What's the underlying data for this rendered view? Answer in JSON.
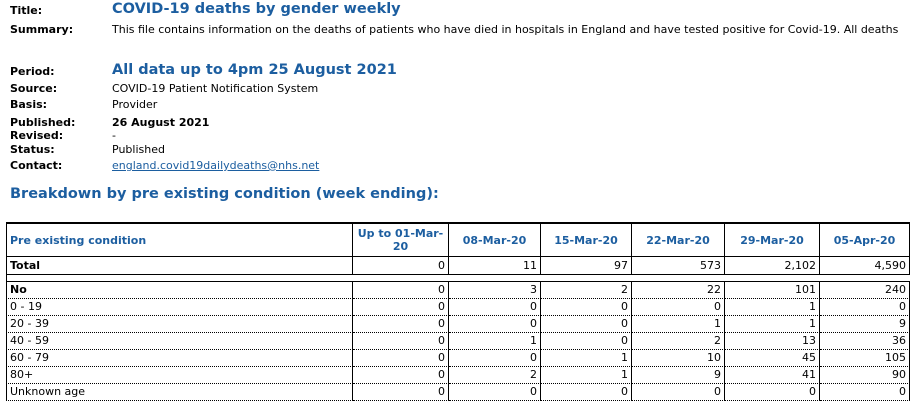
{
  "meta": {
    "title_label": "Title:",
    "title": "COVID-19 deaths by gender weekly",
    "summary_label": "Summary:",
    "summary": "This file contains information on the deaths of patients who have died in hospitals in England and have tested positive for Covid-19. All deaths",
    "period_label": "Period:",
    "period": "All data up to 4pm 25 August 2021",
    "source_label": "Source:",
    "source": "COVID-19 Patient Notification System",
    "basis_label": "Basis:",
    "basis": "Provider",
    "published_label": "Published:",
    "published": "26 August 2021",
    "revised_label": "Revised:",
    "revised": "-",
    "status_label": "Status:",
    "status": "Published",
    "contact_label": "Contact:",
    "contact": "england.covid19dailydeaths@nhs.net"
  },
  "section_title": "Breakdown by pre existing condition (week ending):",
  "table": {
    "columns": [
      "Pre existing condition",
      "Up to 01-Mar-20",
      "08-Mar-20",
      "15-Mar-20",
      "22-Mar-20",
      "29-Mar-20",
      "05-Apr-20"
    ],
    "total": [
      "Total",
      "0",
      "11",
      "97",
      "573",
      "2,102",
      "4,590"
    ],
    "group": [
      "No",
      "0",
      "3",
      "2",
      "22",
      "101",
      "240"
    ],
    "rows": [
      [
        "0 - 19",
        "0",
        "0",
        "0",
        "0",
        "1",
        "0"
      ],
      [
        "20 - 39",
        "0",
        "0",
        "0",
        "1",
        "1",
        "9"
      ],
      [
        "40 - 59",
        "0",
        "1",
        "0",
        "2",
        "13",
        "36"
      ],
      [
        "60 - 79",
        "0",
        "0",
        "1",
        "10",
        "45",
        "105"
      ],
      [
        "80+",
        "0",
        "2",
        "1",
        "9",
        "41",
        "90"
      ],
      [
        "Unknown age",
        "0",
        "0",
        "0",
        "0",
        "0",
        "0"
      ]
    ]
  }
}
